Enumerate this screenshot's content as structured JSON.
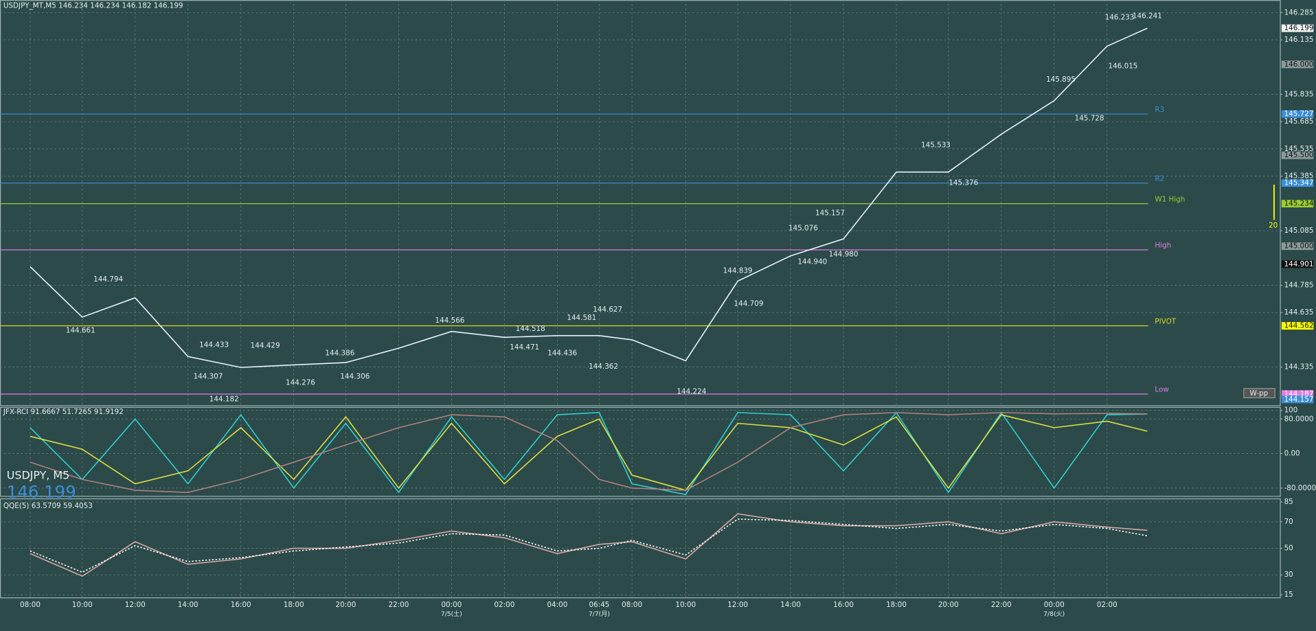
{
  "chart_data": [
    {
      "type": "line",
      "title": "USDJPY_MT,M5  146.234 146.234 146.182 146.199",
      "watermark": "USDJPY, M5",
      "watermark_price": "146.199",
      "button_label": "W-pp",
      "range_label": 20,
      "categories": [
        "08:00",
        "10:00",
        "12:00",
        "14:00",
        "16:00",
        "18:00",
        "20:00",
        "22:00",
        "00:00",
        "02:00",
        "04:00",
        "06:45",
        "08:00",
        "10:00",
        "12:00",
        "14:00",
        "16:00",
        "18:00",
        "20:00",
        "22:00",
        "00:00",
        "02:00",
        null
      ],
      "date_row": [
        null,
        null,
        null,
        null,
        null,
        null,
        null,
        null,
        "7/5(土)",
        null,
        null,
        "7/7(月)",
        null,
        null,
        null,
        null,
        null,
        null,
        null,
        null,
        "7/8(火)",
        null,
        null
      ],
      "values": [
        144.887,
        144.61,
        144.716,
        144.393,
        144.333,
        144.347,
        144.36,
        144.439,
        144.531,
        144.499,
        144.508,
        144.508,
        144.485,
        144.37,
        144.808,
        144.947,
        145.04,
        145.408,
        145.408,
        145.616,
        145.8,
        146.1,
        146.199
      ],
      "color": "#e8f2ff",
      "ylim": [
        144.125,
        146.354
      ],
      "yticks": [
        146.285,
        146.135,
        145.835,
        145.685,
        145.535,
        145.385,
        145.085,
        144.785,
        144.635,
        144.335
      ],
      "grid": true,
      "levels": [
        {
          "label": "R3",
          "value": 145.727,
          "color": "#3a8fd8"
        },
        {
          "label": "R2",
          "value": 145.347,
          "color": "#3a8fd8"
        },
        {
          "label": "W1 High",
          "value": 145.234,
          "color": "#9acd32"
        },
        {
          "label": "High",
          "value": 144.98,
          "color": "#e07be0"
        },
        {
          "label": "PIVOT",
          "value": 144.562,
          "color": "#d8d820"
        },
        {
          "label": "Low",
          "value": 144.187,
          "color": "#e07be0"
        }
      ],
      "price_tags": [
        {
          "value": 146.199,
          "label": "146.199",
          "color": "#f4f4f4"
        },
        {
          "value": 146.0,
          "label": "146.000",
          "color": "#8a9a9a"
        },
        {
          "value": 145.727,
          "label": "145.727",
          "color": "#3a8fd8"
        },
        {
          "value": 145.5,
          "label": "145.500",
          "color": "#8a9a9a"
        },
        {
          "value": 145.347,
          "label": "145.347",
          "color": "#3a8fd8"
        },
        {
          "value": 145.234,
          "label": "145.234",
          "color": "#9acd32"
        },
        {
          "value": 145.0,
          "label": "145.000",
          "color": "#8a9a9a"
        },
        {
          "value": 144.901,
          "label": "144.901",
          "color": "#111111"
        },
        {
          "value": 144.562,
          "label": "144.562",
          "color": "#ffff00"
        },
        {
          "value": 144.187,
          "label": "144.187",
          "color": "#e07be0"
        },
        {
          "value": 144.157,
          "label": "144.157",
          "color": "#3a8fd8"
        }
      ],
      "annotations": [
        {
          "value": 144.794,
          "label": "144.794"
        },
        {
          "value": 144.661,
          "label": "144.661"
        },
        {
          "value": 144.433,
          "label": "144.433"
        },
        {
          "value": 144.307,
          "label": "144.307"
        },
        {
          "value": 144.182,
          "label": "144.182"
        },
        {
          "value": 144.429,
          "label": "144.429"
        },
        {
          "value": 144.276,
          "label": "144.276"
        },
        {
          "value": 144.386,
          "label": "144.386"
        },
        {
          "value": 144.306,
          "label": "144.306"
        },
        {
          "value": 144.566,
          "label": "144.566"
        },
        {
          "value": 144.471,
          "label": "144.471"
        },
        {
          "value": 144.518,
          "label": "144.518"
        },
        {
          "value": 144.436,
          "label": "144.436"
        },
        {
          "value": 144.581,
          "label": "144.581"
        },
        {
          "value": 144.627,
          "label": "144.627"
        },
        {
          "value": 144.362,
          "label": "144.362"
        },
        {
          "value": 144.224,
          "label": "144.224"
        },
        {
          "value": 144.839,
          "label": "144.839"
        },
        {
          "value": 144.709,
          "label": "144.709"
        },
        {
          "value": 145.076,
          "label": "145.076"
        },
        {
          "value": 144.94,
          "label": "144.940"
        },
        {
          "value": 145.157,
          "label": "145.157"
        },
        {
          "value": 144.98,
          "label": "144.980"
        },
        {
          "value": 145.533,
          "label": "145.533"
        },
        {
          "value": 145.376,
          "label": "145.376"
        },
        {
          "value": 145.895,
          "label": "145.895"
        },
        {
          "value": 145.728,
          "label": "145.728"
        },
        {
          "value": 146.233,
          "label": "146.233"
        },
        {
          "value": 146.241,
          "label": "146.241"
        },
        {
          "value": 146.015,
          "label": "146.015"
        }
      ]
    },
    {
      "type": "line",
      "title": "JFX-RCI 91.6667 51.7265 91.9192",
      "ylim": [
        -100,
        108
      ],
      "yticks": [
        100,
        {
          "value": 80,
          "label": "80.0000"
        },
        {
          "value": 0,
          "label": "0.00"
        },
        {
          "value": -80,
          "label": "-80.0000"
        }
      ],
      "grid": true,
      "series": [
        {
          "color": "#30d0d0",
          "values": [
            60,
            -60,
            80,
            -70,
            90,
            -80,
            70,
            -90,
            85,
            -60,
            90,
            95,
            -70,
            -95,
            95,
            90,
            -40,
            95,
            -90,
            95,
            -80,
            90,
            91.6667
          ]
        },
        {
          "color": "#e0e040",
          "values": [
            40,
            10,
            -70,
            -40,
            60,
            -60,
            85,
            -80,
            70,
            -70,
            40,
            80,
            -50,
            -85,
            70,
            60,
            20,
            85,
            -80,
            90,
            60,
            75,
            51.7265
          ]
        },
        {
          "color": "#b08080",
          "values": [
            -20,
            -60,
            -85,
            -90,
            -60,
            -20,
            20,
            60,
            90,
            85,
            30,
            -60,
            -80,
            -85,
            -20,
            60,
            90,
            95,
            90,
            95,
            92,
            93,
            91.9192
          ]
        }
      ]
    },
    {
      "type": "line",
      "title": "QQE(5) 63.5709 59.4053",
      "ylim": [
        13,
        87
      ],
      "yticks": [
        85,
        70,
        50,
        30,
        15
      ],
      "grid": true,
      "series": [
        {
          "color": "#d8a8a8",
          "values": [
            46,
            29,
            55,
            38,
            42,
            50,
            50,
            56,
            63,
            58,
            46,
            53,
            55,
            42,
            76,
            70,
            67,
            67,
            70,
            61,
            70,
            66,
            63.5709
          ]
        },
        {
          "color": "#ffffff",
          "dash": true,
          "values": [
            48,
            32,
            52,
            40,
            43,
            48,
            51,
            54,
            61,
            60,
            48,
            50,
            56,
            45,
            72,
            71,
            68,
            65,
            68,
            63,
            68,
            65,
            59.4053
          ]
        }
      ]
    }
  ]
}
